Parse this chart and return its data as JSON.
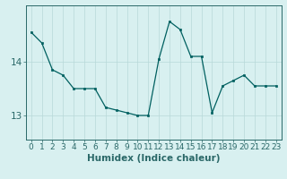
{
  "x": [
    0,
    1,
    2,
    3,
    4,
    5,
    6,
    7,
    8,
    9,
    10,
    11,
    12,
    13,
    14,
    15,
    16,
    17,
    18,
    19,
    20,
    21,
    22,
    23
  ],
  "y": [
    14.55,
    14.35,
    13.85,
    13.75,
    13.5,
    13.5,
    13.5,
    13.15,
    13.1,
    13.05,
    13.0,
    13.0,
    14.05,
    14.75,
    14.6,
    14.1,
    14.1,
    13.05,
    13.55,
    13.65,
    13.75,
    13.55,
    13.55,
    13.55
  ],
  "line_color": "#006060",
  "marker_color": "#006060",
  "bg_color": "#d8f0f0",
  "grid_color": "#b8d8d8",
  "xlabel": "Humidex (Indice chaleur)",
  "yticks": [
    13,
    14
  ],
  "ylim": [
    12.55,
    15.05
  ],
  "xlim": [
    -0.5,
    23.5
  ],
  "xticks": [
    0,
    1,
    2,
    3,
    4,
    5,
    6,
    7,
    8,
    9,
    10,
    11,
    12,
    13,
    14,
    15,
    16,
    17,
    18,
    19,
    20,
    21,
    22,
    23
  ],
  "tick_color": "#2a6868",
  "xlabel_color": "#2a6868",
  "label_fontsize": 6.5,
  "xlabel_fontsize": 7.5
}
